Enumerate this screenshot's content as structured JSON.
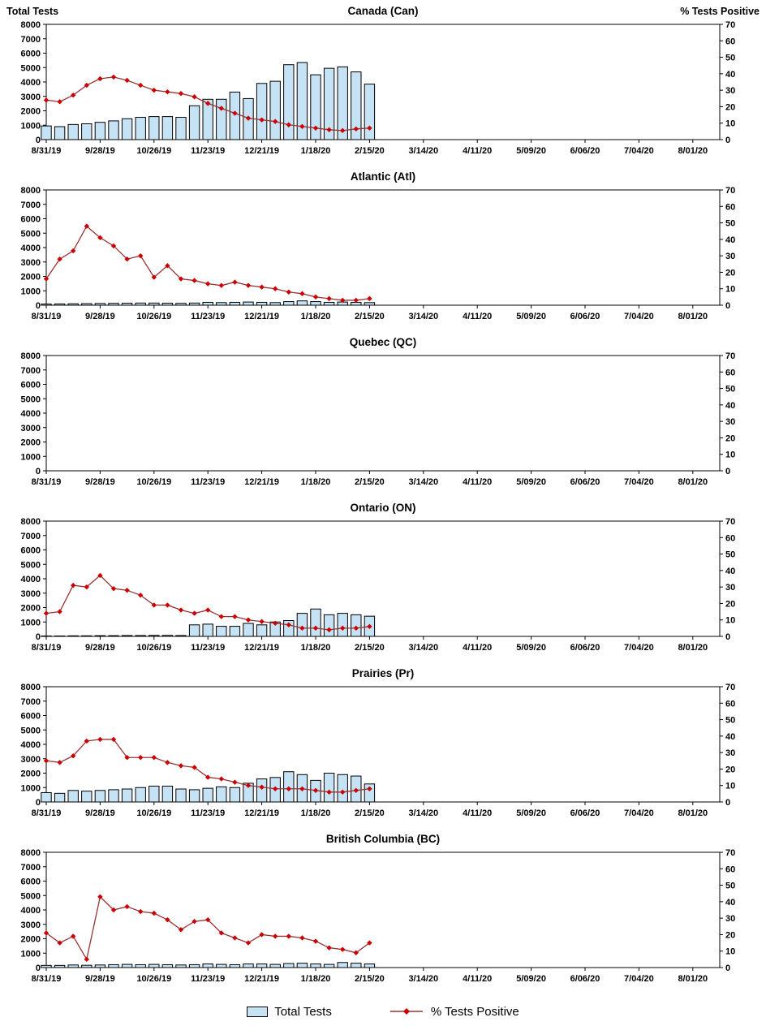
{
  "header": {
    "left_axis_title": "Total Tests",
    "right_axis_title": "% Tests Positive"
  },
  "legend": {
    "bars_label": "Total Tests",
    "line_label": "% Tests Positive"
  },
  "style": {
    "bar_fill": "#C6E2F5",
    "bar_stroke": "#000000",
    "line_color": "#993333",
    "marker_color": "#CC0000"
  },
  "axes": {
    "left_min": 0,
    "left_max": 8000,
    "left_step": 1000,
    "right_min": 0,
    "right_max": 70,
    "right_step": 10,
    "weeks_span": 50,
    "x_tick_weeks": [
      0,
      4,
      8,
      12,
      16,
      20,
      24,
      28,
      32,
      36,
      40,
      44,
      48
    ],
    "x_tick_labels": [
      "8/31/19",
      "9/28/19",
      "10/26/19",
      "11/23/19",
      "12/21/19",
      "1/18/20",
      "2/15/20",
      "3/14/20",
      "4/11/20",
      "5/09/20",
      "6/06/20",
      "7/04/20",
      "8/01/20"
    ]
  },
  "chart_data": [
    {
      "type": "bar",
      "title": "Canada (Can)",
      "xlabel": "",
      "ylabel_left": "Total Tests",
      "ylabel_right": "% Tests Positive",
      "ylim_left": [
        0,
        8000
      ],
      "ylim_right": [
        0,
        70
      ],
      "x": [
        "8/31/19",
        "9/07/19",
        "9/14/19",
        "9/21/19",
        "9/28/19",
        "10/05/19",
        "10/12/19",
        "10/19/19",
        "10/26/19",
        "11/02/19",
        "11/09/19",
        "11/16/19",
        "11/23/19",
        "11/30/19",
        "12/07/19",
        "12/14/19",
        "12/21/19",
        "12/28/19",
        "1/04/20",
        "1/11/20",
        "1/18/20",
        "1/25/20",
        "2/01/20",
        "2/08/20",
        "2/15/20"
      ],
      "series": [
        {
          "name": "Total Tests",
          "kind": "bar",
          "values": [
            950,
            900,
            1050,
            1100,
            1200,
            1300,
            1450,
            1550,
            1600,
            1600,
            1550,
            2350,
            2800,
            2800,
            3300,
            2850,
            3900,
            4050,
            5200,
            5350,
            4500,
            4950,
            5050,
            4700,
            3850
          ]
        },
        {
          "name": "% Tests Positive",
          "kind": "line",
          "values": [
            24,
            23,
            27,
            33,
            37,
            38,
            36,
            33,
            30,
            29,
            28,
            26,
            22,
            19,
            16,
            13,
            12,
            11,
            9,
            8,
            7,
            6,
            5.5,
            6.5,
            7
          ]
        }
      ]
    },
    {
      "type": "bar",
      "title": "Atlantic (Atl)",
      "xlabel": "",
      "ylabel_left": "Total Tests",
      "ylabel_right": "% Tests Positive",
      "ylim_left": [
        0,
        8000
      ],
      "ylim_right": [
        0,
        70
      ],
      "x": [
        "8/31/19",
        "9/07/19",
        "9/14/19",
        "9/21/19",
        "9/28/19",
        "10/05/19",
        "10/12/19",
        "10/19/19",
        "10/26/19",
        "11/02/19",
        "11/09/19",
        "11/16/19",
        "11/23/19",
        "11/30/19",
        "12/07/19",
        "12/14/19",
        "12/21/19",
        "12/28/19",
        "1/04/20",
        "1/11/20",
        "1/18/20",
        "1/25/20",
        "2/01/20",
        "2/08/20",
        "2/15/20"
      ],
      "series": [
        {
          "name": "Total Tests",
          "kind": "bar",
          "values": [
            80,
            90,
            100,
            110,
            120,
            130,
            140,
            150,
            150,
            140,
            130,
            150,
            200,
            180,
            200,
            220,
            200,
            180,
            250,
            300,
            250,
            200,
            220,
            200,
            180
          ]
        },
        {
          "name": "% Tests Positive",
          "kind": "line",
          "values": [
            16,
            28,
            33,
            48,
            41,
            36,
            28,
            30,
            17,
            24,
            16,
            15,
            13,
            12,
            14,
            12,
            11,
            10,
            8,
            7,
            5,
            4,
            3,
            3,
            4
          ]
        }
      ]
    },
    {
      "type": "bar",
      "title": "Quebec (QC)",
      "xlabel": "",
      "ylabel_left": "Total Tests",
      "ylabel_right": "% Tests Positive",
      "ylim_left": [
        0,
        8000
      ],
      "ylim_right": [
        0,
        70
      ],
      "x": [],
      "series": [
        {
          "name": "Total Tests",
          "kind": "bar",
          "values": []
        },
        {
          "name": "% Tests Positive",
          "kind": "line",
          "values": []
        }
      ]
    },
    {
      "type": "bar",
      "title": "Ontario (ON)",
      "xlabel": "",
      "ylabel_left": "Total Tests",
      "ylabel_right": "% Tests Positive",
      "ylim_left": [
        0,
        8000
      ],
      "ylim_right": [
        0,
        70
      ],
      "x": [
        "8/31/19",
        "9/07/19",
        "9/14/19",
        "9/21/19",
        "9/28/19",
        "10/05/19",
        "10/12/19",
        "10/19/19",
        "10/26/19",
        "11/02/19",
        "11/09/19",
        "11/16/19",
        "11/23/19",
        "11/30/19",
        "12/07/19",
        "12/14/19",
        "12/21/19",
        "12/28/19",
        "1/04/20",
        "1/11/20",
        "1/18/20",
        "1/25/20",
        "2/01/20",
        "2/08/20",
        "2/15/20"
      ],
      "series": [
        {
          "name": "Total Tests",
          "kind": "bar",
          "values": [
            30,
            30,
            40,
            40,
            50,
            50,
            60,
            60,
            70,
            70,
            60,
            800,
            850,
            700,
            700,
            900,
            800,
            1000,
            1100,
            1600,
            1900,
            1500,
            1600,
            1500,
            1400
          ]
        },
        {
          "name": "% Tests Positive",
          "kind": "line",
          "values": [
            14,
            15,
            31,
            30,
            37,
            29,
            28,
            25,
            19,
            19,
            16,
            14,
            16,
            12,
            12,
            10,
            9,
            8,
            7,
            5,
            5,
            4,
            5,
            5,
            6
          ]
        }
      ]
    },
    {
      "type": "bar",
      "title": "Prairies (Pr)",
      "xlabel": "",
      "ylabel_left": "Total Tests",
      "ylabel_right": "% Tests Positive",
      "ylim_left": [
        0,
        8000
      ],
      "ylim_right": [
        0,
        70
      ],
      "x": [
        "8/31/19",
        "9/07/19",
        "9/14/19",
        "9/21/19",
        "9/28/19",
        "10/05/19",
        "10/12/19",
        "10/19/19",
        "10/26/19",
        "11/02/19",
        "11/09/19",
        "11/16/19",
        "11/23/19",
        "11/30/19",
        "12/07/19",
        "12/14/19",
        "12/21/19",
        "12/28/19",
        "1/04/20",
        "1/11/20",
        "1/18/20",
        "1/25/20",
        "2/01/20",
        "2/08/20",
        "2/15/20"
      ],
      "series": [
        {
          "name": "Total Tests",
          "kind": "bar",
          "values": [
            650,
            600,
            800,
            750,
            800,
            850,
            900,
            1000,
            1100,
            1100,
            900,
            850,
            950,
            1050,
            1000,
            1300,
            1600,
            1700,
            2100,
            1900,
            1500,
            2000,
            1900,
            1800,
            1250
          ]
        },
        {
          "name": "% Tests Positive",
          "kind": "line",
          "values": [
            25,
            24,
            28,
            37,
            38,
            38,
            27,
            27,
            27,
            24,
            22,
            21,
            15,
            14,
            12,
            10,
            9,
            8,
            8,
            8,
            7,
            6,
            6,
            7,
            8
          ]
        }
      ]
    },
    {
      "type": "bar",
      "title": "British Columbia (BC)",
      "xlabel": "",
      "ylabel_left": "Total Tests",
      "ylabel_right": "% Tests Positive",
      "ylim_left": [
        0,
        8000
      ],
      "ylim_right": [
        0,
        70
      ],
      "x": [
        "8/31/19",
        "9/07/19",
        "9/14/19",
        "9/21/19",
        "9/28/19",
        "10/05/19",
        "10/12/19",
        "10/19/19",
        "10/26/19",
        "11/02/19",
        "11/09/19",
        "11/16/19",
        "11/23/19",
        "11/30/19",
        "12/07/19",
        "12/14/19",
        "12/21/19",
        "12/28/19",
        "1/04/20",
        "1/11/20",
        "1/18/20",
        "1/25/20",
        "2/01/20",
        "2/08/20",
        "2/15/20"
      ],
      "series": [
        {
          "name": "Total Tests",
          "kind": "bar",
          "values": [
            150,
            150,
            180,
            160,
            180,
            200,
            220,
            200,
            220,
            200,
            180,
            200,
            250,
            220,
            200,
            250,
            250,
            220,
            280,
            300,
            250,
            220,
            350,
            300,
            250
          ]
        },
        {
          "name": "% Tests Positive",
          "kind": "line",
          "values": [
            21,
            15,
            19,
            5,
            43,
            35,
            37,
            34,
            33,
            29,
            23,
            28,
            29,
            21,
            18,
            15,
            20,
            19,
            19,
            18,
            16,
            12,
            11,
            9,
            15
          ]
        }
      ]
    }
  ]
}
